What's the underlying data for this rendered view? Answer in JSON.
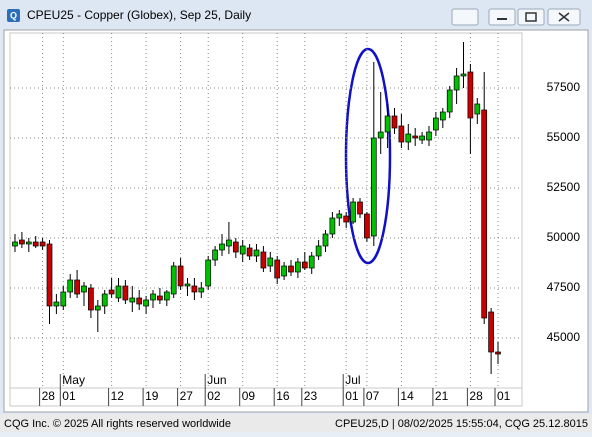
{
  "chart_data": {
    "type": "candlestick",
    "title": "CPEU25 - Copper (Globex), Sep 25, Daily",
    "categories": [
      null,
      null,
      null,
      null,
      "28",
      null,
      null,
      "01",
      null,
      null,
      null,
      null,
      null,
      null,
      "12",
      null,
      null,
      null,
      null,
      "19",
      null,
      null,
      null,
      null,
      "27",
      null,
      null,
      null,
      "02",
      null,
      null,
      null,
      null,
      "09",
      null,
      null,
      null,
      null,
      "16",
      null,
      null,
      null,
      "23",
      null,
      null,
      null,
      null,
      null,
      "01",
      null,
      null,
      "07",
      null,
      null,
      null,
      null,
      "14",
      null,
      null,
      null,
      null,
      "21",
      null,
      null,
      null,
      null,
      "28",
      null,
      null,
      null,
      "01"
    ],
    "months": [
      "May",
      "Jun",
      "Jul"
    ],
    "open": [
      49600,
      49900,
      49700,
      49800,
      49800,
      49700,
      46600,
      46600,
      47300,
      47900,
      47300,
      47500,
      46400,
      46600,
      47400,
      47000,
      47600,
      46800,
      47000,
      46600,
      46900,
      47100,
      46900,
      47200,
      48600,
      47600,
      47600,
      47300,
      47600,
      48900,
      49400,
      49600,
      49800,
      49200,
      49500,
      49100,
      49300,
      48600,
      48900,
      48100,
      48600,
      48300,
      48800,
      48500,
      49100,
      49600,
      50200,
      51000,
      51100,
      50800,
      51800,
      51200,
      50100,
      55000,
      55300,
      56100,
      55600,
      54800,
      55100,
      54900,
      54900,
      55400,
      55900,
      56300,
      57400,
      58100,
      58300,
      56200,
      56400,
      46300,
      44300
    ],
    "high": [
      50200,
      50300,
      50000,
      50100,
      50000,
      49900,
      47200,
      47600,
      48200,
      48400,
      47800,
      47700,
      46900,
      47400,
      48000,
      48000,
      47900,
      47600,
      47400,
      47100,
      47400,
      47500,
      47400,
      48800,
      49000,
      48000,
      48000,
      47800,
      49100,
      49600,
      50200,
      50800,
      50000,
      49900,
      49700,
      49700,
      49600,
      49300,
      49100,
      48800,
      48900,
      49000,
      49300,
      49300,
      49900,
      50400,
      51300,
      51400,
      51300,
      52000,
      52000,
      51300,
      58800,
      57300,
      56700,
      56500,
      56200,
      55700,
      55500,
      55300,
      55600,
      56300,
      56500,
      57600,
      58500,
      59800,
      58700,
      57000,
      58300,
      46500,
      44800
    ],
    "low": [
      49300,
      49500,
      49300,
      49500,
      49400,
      45700,
      46200,
      46400,
      47000,
      47000,
      46600,
      46000,
      45300,
      46200,
      47000,
      46800,
      46700,
      46300,
      46400,
      46200,
      46500,
      46700,
      46600,
      47000,
      47400,
      47100,
      46900,
      47000,
      47400,
      48600,
      49100,
      49200,
      49000,
      48800,
      48900,
      48800,
      48300,
      48300,
      47700,
      47900,
      48100,
      48000,
      48400,
      48200,
      48900,
      49300,
      50000,
      50600,
      50500,
      50700,
      51000,
      49800,
      49600,
      54200,
      54500,
      55200,
      54500,
      54400,
      54600,
      54700,
      54600,
      55100,
      55500,
      56000,
      56700,
      57500,
      54200,
      55700,
      45700,
      43200,
      43700
    ],
    "close": [
      49800,
      49700,
      49800,
      49600,
      49600,
      46600,
      46800,
      47300,
      47900,
      47200,
      47600,
      46400,
      46600,
      47200,
      47200,
      47600,
      46900,
      47000,
      46700,
      46900,
      47200,
      46900,
      47300,
      48600,
      47600,
      47700,
      47300,
      47500,
      48900,
      49400,
      49700,
      49900,
      49300,
      49600,
      49100,
      49400,
      48500,
      49000,
      48000,
      48600,
      48300,
      48800,
      48500,
      49100,
      49600,
      50200,
      51000,
      51200,
      50800,
      51800,
      51200,
      50000,
      55000,
      55300,
      56100,
      55500,
      54800,
      55200,
      55000,
      55100,
      55300,
      56000,
      56300,
      57400,
      58100,
      58200,
      56000,
      56700,
      46000,
      44300,
      44200
    ],
    "up_color": "#00c000",
    "down_color": "#c80000",
    "ylim": [
      42500,
      60250
    ],
    "yticks": [
      45000,
      47500,
      50000,
      52500,
      55000,
      57500
    ],
    "grid": true
  },
  "footer": {
    "left": "CQG Inc. © 2025 All rights reserved worldwide",
    "right": "CPEU25,D | 08/02/2025 15:55:04, CQG 25.12.8015"
  }
}
